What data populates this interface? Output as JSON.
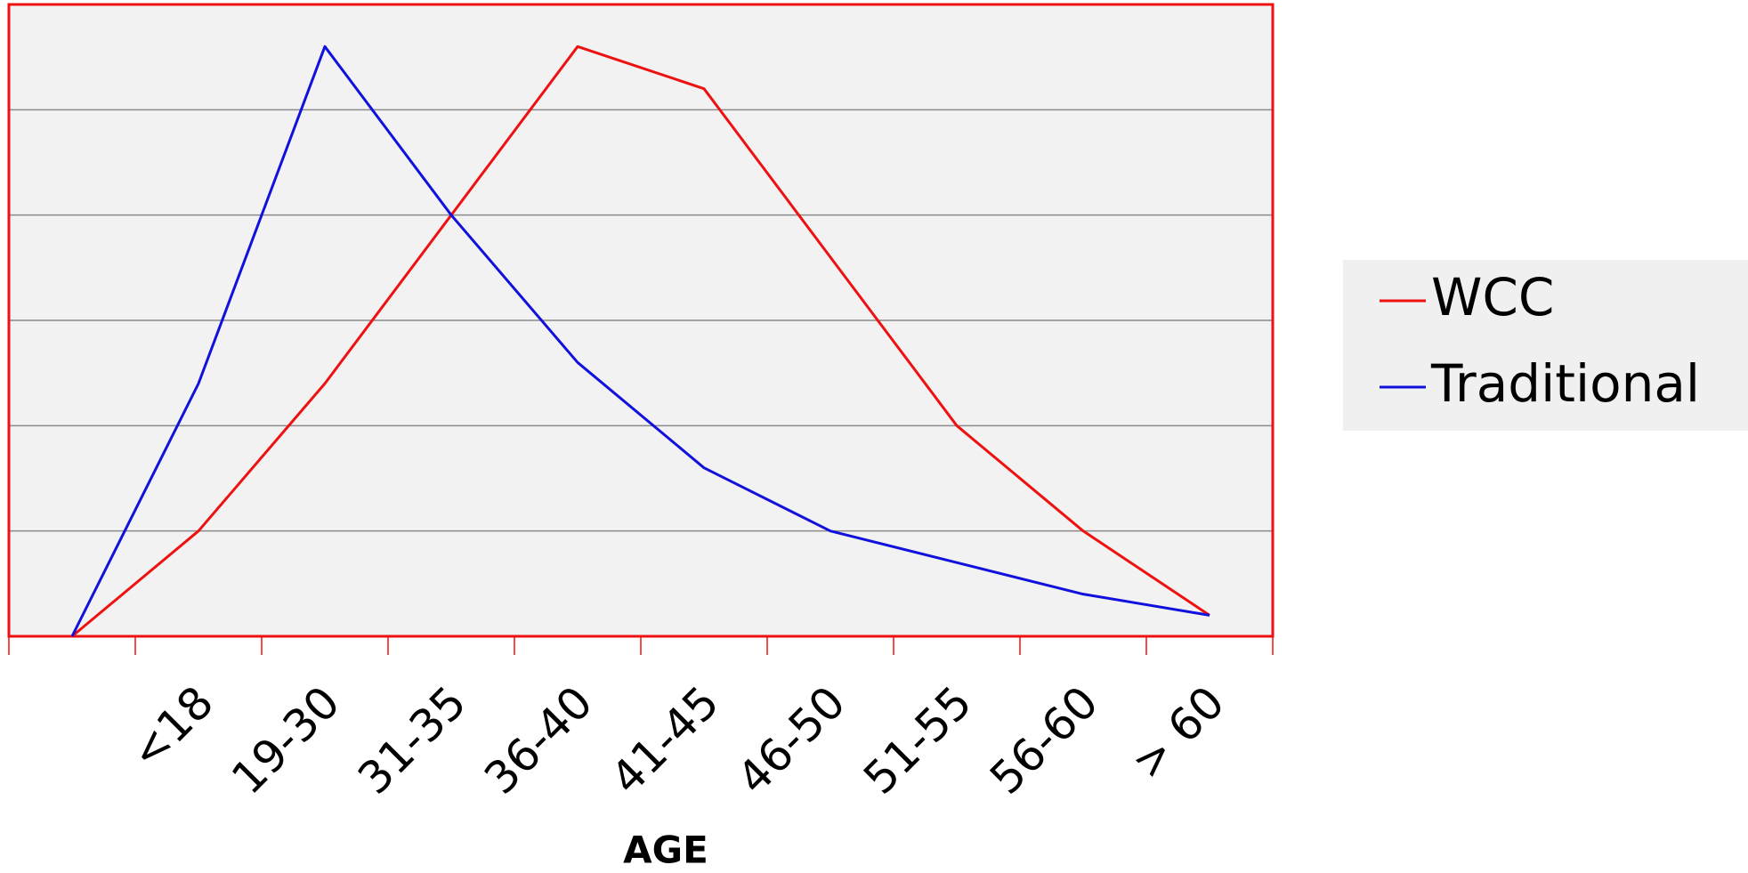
{
  "chart_data": {
    "type": "line",
    "x_label": "AGE",
    "categories": [
      null,
      "<18",
      "19-30",
      "31-35",
      "36-40",
      "41-45",
      "46-50",
      "51-55",
      "56-60",
      "> 60"
    ],
    "series": [
      {
        "name": "WCC",
        "color": "#ee1111",
        "values": [
          0,
          1,
          2.4,
          4,
          5.6,
          5.2,
          3.6,
          2,
          1,
          0.2
        ]
      },
      {
        "name": "Traditional",
        "color": "#1111dd",
        "values": [
          0,
          2.4,
          5.6,
          4,
          2.6,
          1.6,
          1,
          0.7,
          0.4,
          0.2
        ]
      }
    ],
    "ylim": [
      0,
      6
    ],
    "yticks": [
      0,
      1,
      2,
      3,
      4,
      5,
      6
    ],
    "grid": true,
    "legend": "right"
  }
}
